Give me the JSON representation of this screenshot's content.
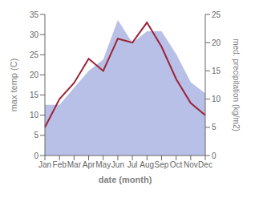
{
  "chart_data": {
    "type": "line",
    "xlabel": "date (month)",
    "ylabel": "max temp (C)",
    "y2label": "med. precipitation (kg/m2)",
    "categories": [
      "Jan",
      "Feb",
      "Mar",
      "Apr",
      "May",
      "Jun",
      "Jul",
      "Aug",
      "Sep",
      "Oct",
      "Nov",
      "Dec"
    ],
    "series": [
      {
        "type": "area",
        "color": "#b8c0e8",
        "axis": "y2",
        "values": [
          9,
          9,
          12,
          15,
          17,
          24,
          20,
          22,
          22,
          18,
          13,
          11
        ]
      },
      {
        "type": "line",
        "color": "#9b2335",
        "values": [
          7,
          14,
          18,
          24,
          21,
          29,
          28,
          33,
          27,
          19,
          13,
          10
        ]
      }
    ],
    "ylim": [
      0,
      35
    ],
    "yticks": [
      0,
      5,
      10,
      15,
      20,
      25,
      30,
      35
    ],
    "y2lim": [
      0,
      25
    ],
    "y2ticks": [
      0,
      5,
      10,
      15,
      20,
      25
    ],
    "grid": false
  }
}
